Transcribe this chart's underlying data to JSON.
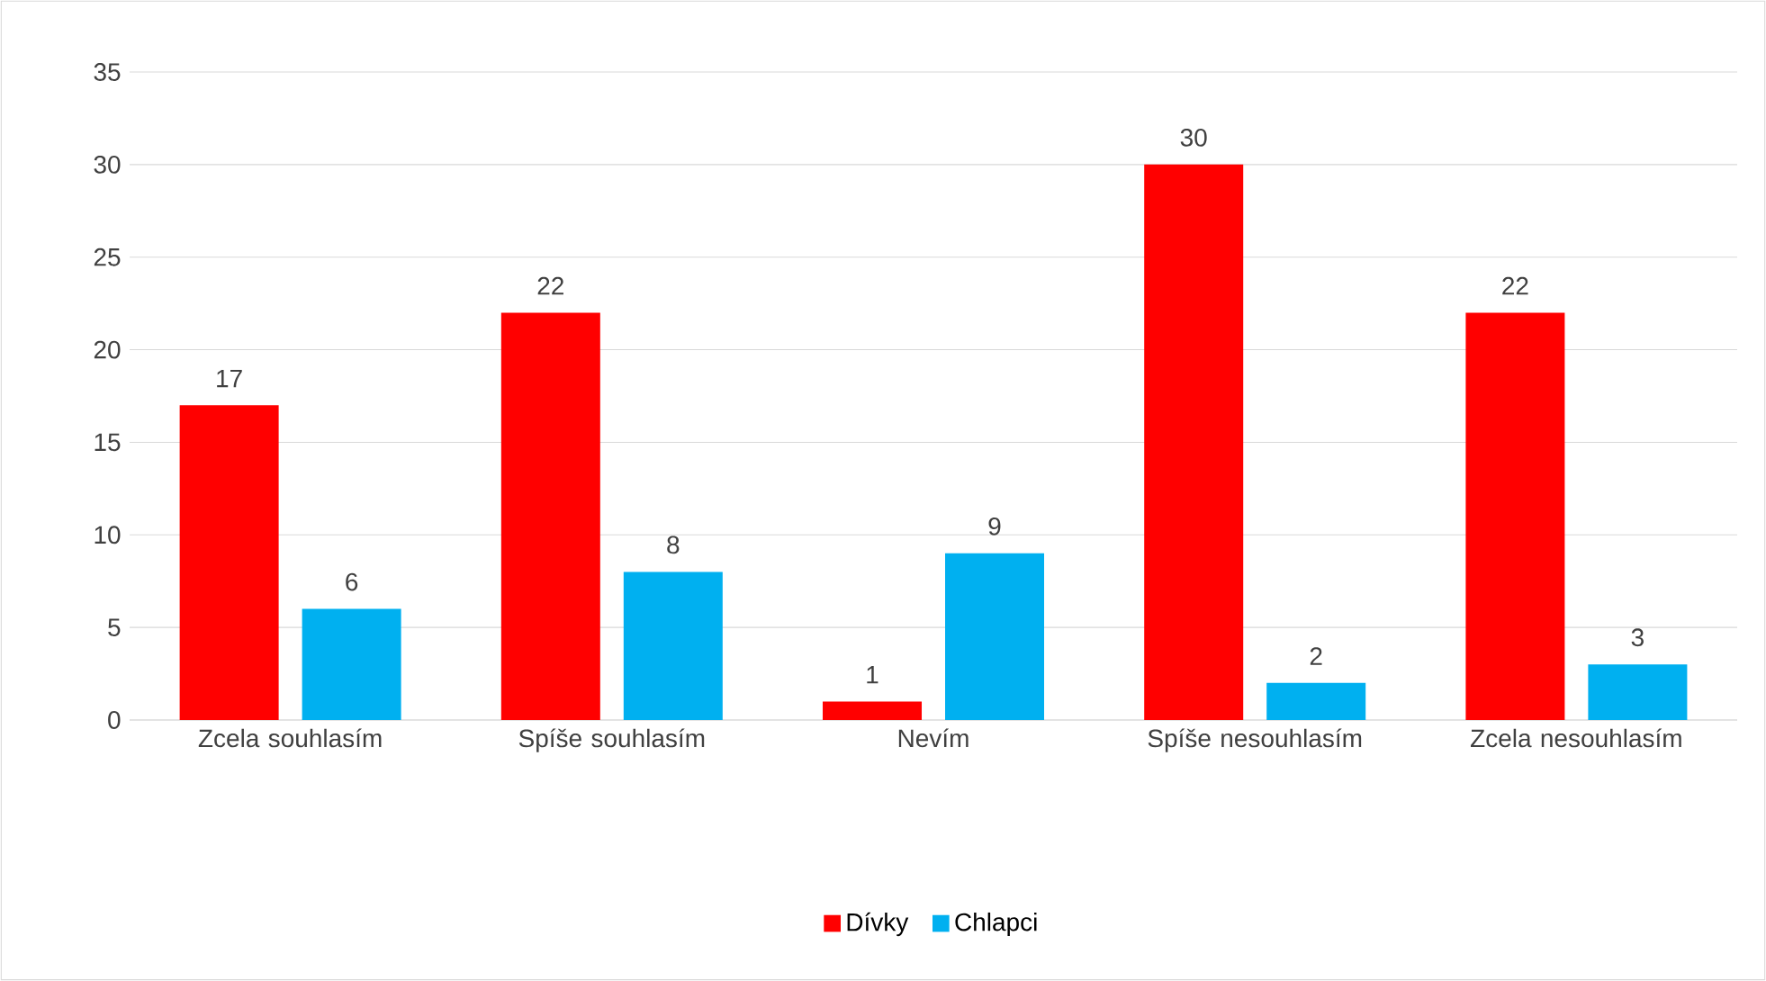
{
  "chart_data": {
    "type": "bar",
    "categories": [
      "Zcela souhlasím",
      "Spíše souhlasím",
      "Nevím",
      "Spíše nesouhlasím",
      "Zcela nesouhlasím"
    ],
    "series": [
      {
        "name": "Dívky",
        "color": "#ff0000",
        "values": [
          17,
          22,
          1,
          30,
          22
        ]
      },
      {
        "name": "Chlapci",
        "color": "#00b0f0",
        "values": [
          6,
          8,
          9,
          2,
          3
        ]
      }
    ],
    "ylim": [
      0,
      35
    ],
    "yticks": [
      0,
      5,
      10,
      15,
      20,
      25,
      30,
      35
    ],
    "grid": "y",
    "legend": "bottom",
    "data_labels": true
  }
}
